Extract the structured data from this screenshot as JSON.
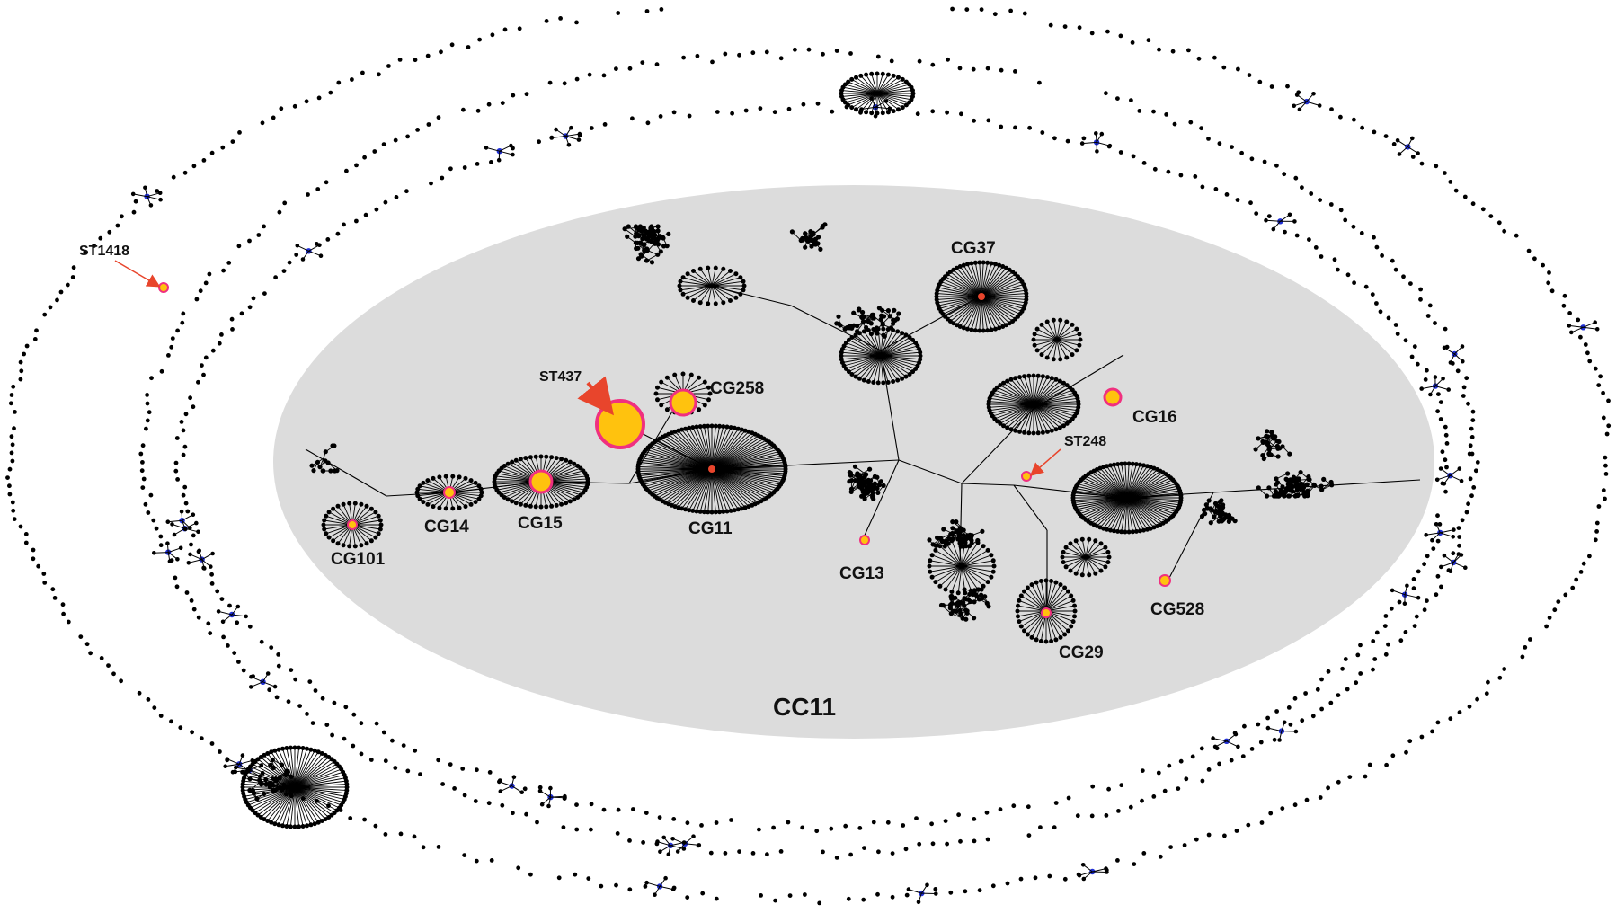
{
  "figure": {
    "cluster_label": "CC11",
    "colors": {
      "background": "#ffffff",
      "cluster_fill": "#dcdcdc",
      "node": "#000000",
      "edge": "#000000",
      "highlight_fill": "#ffc20e",
      "highlight_stroke": "#f0307f",
      "center_red": "#e8452c",
      "singleton_blue": "#1f2fd6",
      "arrow": "#e8452c"
    },
    "clonal_groups": [
      {
        "label": "CG101"
      },
      {
        "label": "CG14"
      },
      {
        "label": "CG15"
      },
      {
        "label": "CG11"
      },
      {
        "label": "CG258"
      },
      {
        "label": "CG37"
      },
      {
        "label": "CG16"
      },
      {
        "label": "CG13"
      },
      {
        "label": "CG29"
      },
      {
        "label": "CG528"
      }
    ],
    "annotated_sequence_types": [
      {
        "label": "ST437"
      },
      {
        "label": "ST248"
      },
      {
        "label": "ST1418"
      }
    ]
  }
}
